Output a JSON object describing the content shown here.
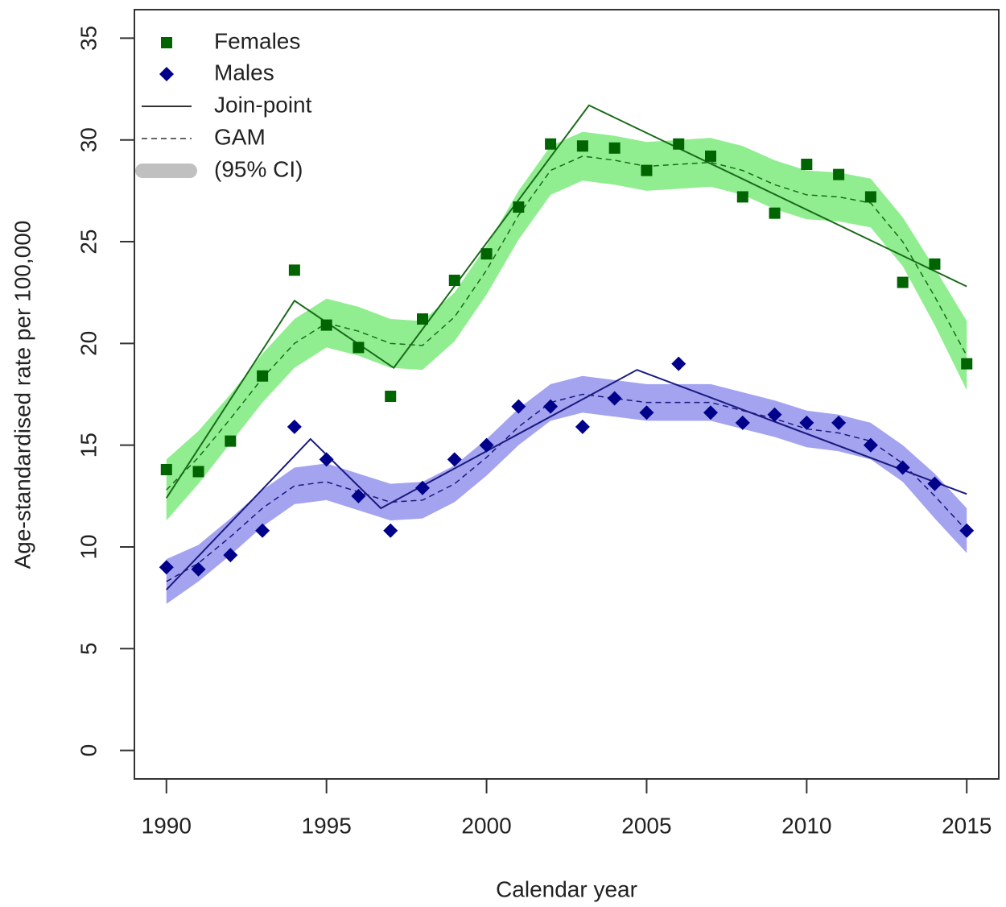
{
  "chart_data": {
    "type": "scatter",
    "x_label": "Calendar year",
    "y_label": "Age-standardised rate per 100,000",
    "x": [
      1990,
      1991,
      1992,
      1993,
      1994,
      1995,
      1996,
      1997,
      1998,
      1999,
      2000,
      2001,
      2002,
      2003,
      2004,
      2005,
      2006,
      2007,
      2008,
      2009,
      2010,
      2011,
      2012,
      2013,
      2014,
      2015
    ],
    "xlim": [
      1989,
      2016
    ],
    "xticks": [
      1990,
      1995,
      2000,
      2005,
      2010,
      2015
    ],
    "ylim": [
      -1.4,
      36.4
    ],
    "yticks": [
      0,
      5,
      10,
      15,
      20,
      25,
      30,
      35
    ],
    "legend_position": "topleft",
    "legend_items": [
      "Join-point",
      "GAM",
      "(95% CI)"
    ],
    "legend_band_color": "#c0c0c0",
    "series": [
      {
        "name": "Females",
        "color": "#006400",
        "marker": "square",
        "line_color": "#1a6b1a",
        "band_color": "#90ee90",
        "values": [
          13.8,
          13.7,
          15.2,
          18.4,
          23.6,
          20.9,
          19.8,
          17.4,
          21.2,
          23.1,
          24.4,
          26.7,
          29.8,
          29.7,
          29.6,
          28.5,
          29.8,
          29.2,
          27.2,
          26.4,
          28.8,
          28.3,
          27.2,
          23.0,
          23.9,
          19.0
        ],
        "joinpoint": {
          "x": [
            1990,
            1994,
            1997.1,
            2003.2,
            2015
          ],
          "values": [
            12.4,
            22.1,
            18.8,
            31.7,
            22.8
          ]
        },
        "gam": {
          "values": [
            12.8,
            14.4,
            16.3,
            18.3,
            20.0,
            21.0,
            20.6,
            20.0,
            19.9,
            21.3,
            23.6,
            26.3,
            28.5,
            29.2,
            29.0,
            28.7,
            28.8,
            28.9,
            28.5,
            27.8,
            27.3,
            27.2,
            26.9,
            25.0,
            22.3,
            19.4
          ],
          "lower": [
            11.3,
            13.1,
            15.1,
            17.1,
            18.8,
            19.8,
            19.4,
            18.8,
            18.7,
            20.1,
            22.4,
            25.1,
            27.3,
            28.0,
            27.8,
            27.5,
            27.6,
            27.7,
            27.3,
            26.6,
            26.1,
            26.0,
            25.7,
            23.8,
            20.9,
            17.7
          ],
          "upper": [
            14.3,
            15.7,
            17.5,
            19.5,
            21.2,
            22.2,
            21.8,
            21.2,
            21.1,
            22.5,
            24.8,
            27.5,
            29.7,
            30.4,
            30.2,
            29.9,
            30.0,
            30.1,
            29.7,
            29.0,
            28.5,
            28.4,
            28.1,
            26.2,
            23.7,
            21.1
          ]
        }
      },
      {
        "name": "Males",
        "color": "#00008b",
        "marker": "diamond",
        "line_color": "#1a1a80",
        "band_color": "#a3a3f0",
        "values": [
          9.0,
          8.9,
          9.6,
          10.8,
          15.9,
          14.3,
          12.5,
          10.8,
          12.9,
          14.3,
          15.0,
          16.9,
          16.9,
          15.9,
          17.3,
          16.6,
          19.0,
          16.6,
          16.1,
          16.5,
          16.1,
          16.1,
          15.0,
          13.9,
          13.1,
          10.8
        ],
        "joinpoint": {
          "x": [
            1990,
            1994.5,
            1996.7,
            2004.7,
            2015
          ],
          "values": [
            7.9,
            15.3,
            11.9,
            18.7,
            12.6
          ]
        },
        "gam": {
          "values": [
            8.3,
            9.2,
            10.5,
            11.9,
            13.0,
            13.2,
            12.7,
            12.2,
            12.3,
            13.1,
            14.4,
            15.9,
            17.1,
            17.5,
            17.3,
            17.1,
            17.1,
            17.1,
            16.7,
            16.3,
            15.8,
            15.6,
            15.2,
            14.1,
            12.5,
            10.8
          ],
          "lower": [
            7.2,
            8.3,
            9.6,
            11.0,
            12.1,
            12.3,
            11.8,
            11.3,
            11.4,
            12.2,
            13.5,
            15.0,
            16.2,
            16.6,
            16.4,
            16.2,
            16.2,
            16.2,
            15.8,
            15.4,
            14.9,
            14.7,
            14.3,
            13.2,
            11.4,
            9.7
          ],
          "upper": [
            9.4,
            10.1,
            11.4,
            12.8,
            13.9,
            14.1,
            13.6,
            13.1,
            13.2,
            14.0,
            15.3,
            16.8,
            18.0,
            18.4,
            18.2,
            18.0,
            18.0,
            18.0,
            17.6,
            17.2,
            16.7,
            16.5,
            16.1,
            15.0,
            13.6,
            11.9
          ]
        }
      }
    ]
  }
}
